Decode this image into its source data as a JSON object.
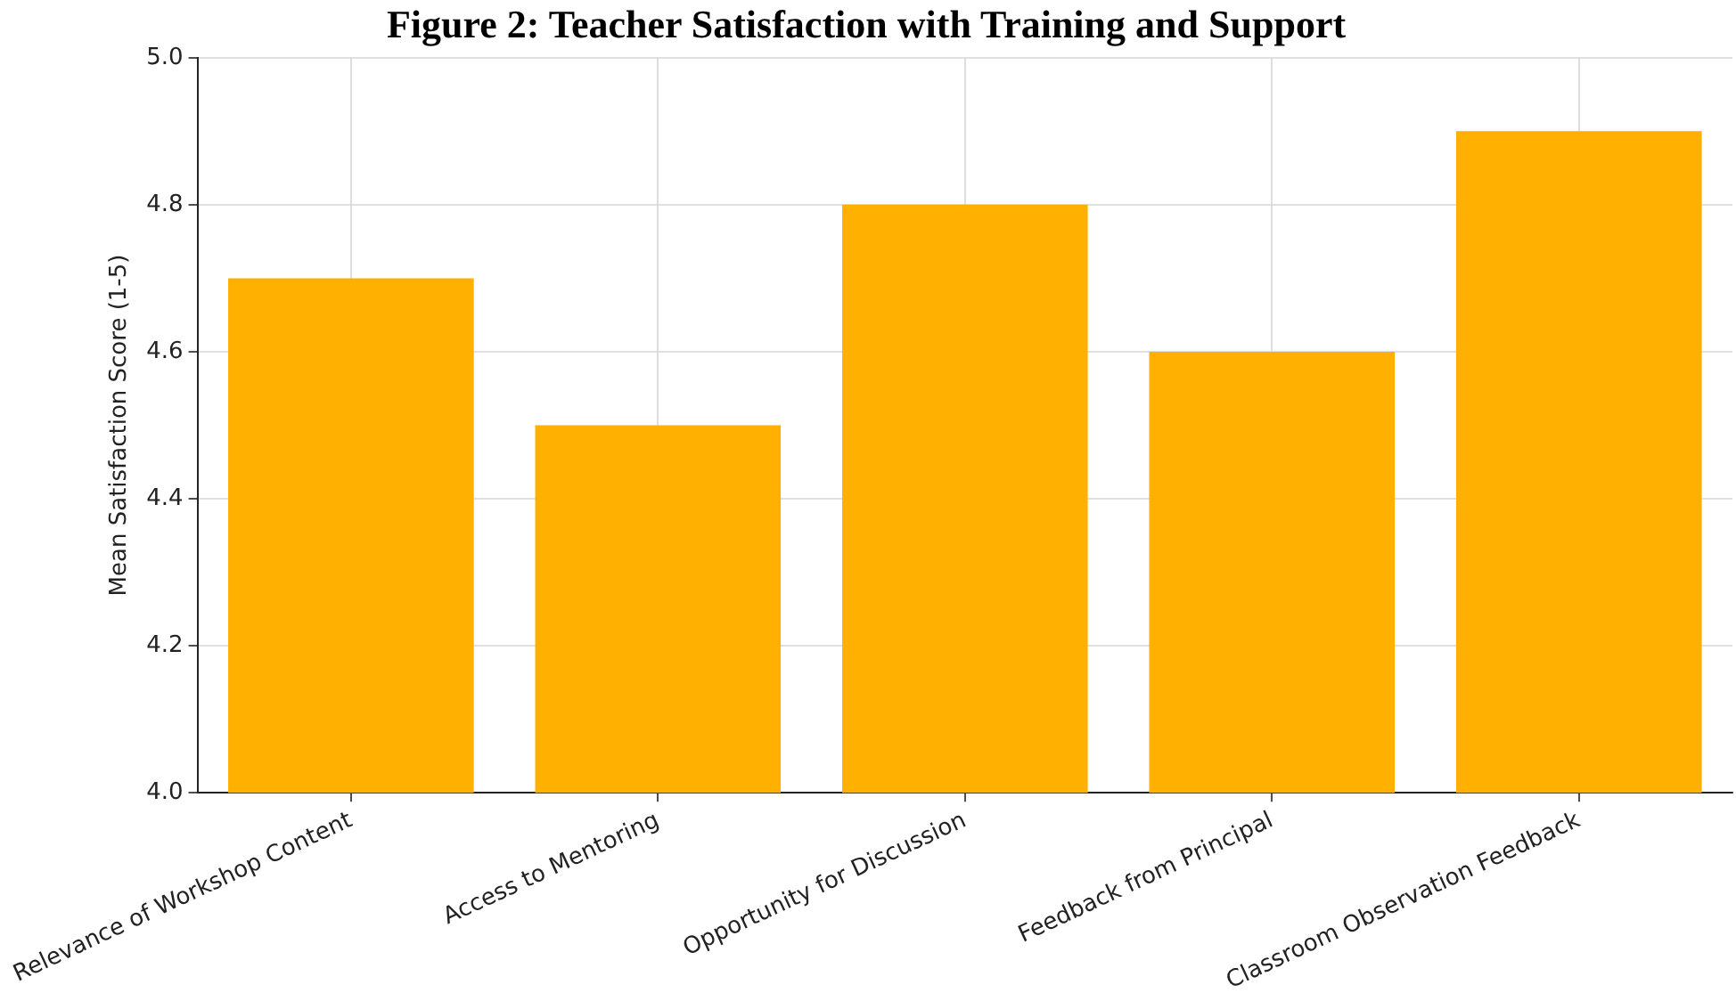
{
  "chart_data": {
    "type": "bar",
    "title": "Figure 2: Teacher Satisfaction with Training and Support",
    "ylabel": "Mean Satisfaction Score (1-5)",
    "categories": [
      "Relevance of Workshop Content",
      "Access to Mentoring",
      "Opportunity for Discussion",
      "Feedback from Principal",
      "Classroom Observation Feedback"
    ],
    "values": [
      4.7,
      4.5,
      4.8,
      4.6,
      4.9
    ],
    "color": "#ffb000",
    "ylim": [
      4.0,
      5.0
    ],
    "yticks": [
      {
        "value": 4.0,
        "label": "4.0"
      },
      {
        "value": 4.2,
        "label": "4.2"
      },
      {
        "value": 4.4,
        "label": "4.4"
      },
      {
        "value": 4.6,
        "label": "4.6"
      },
      {
        "value": 4.8,
        "label": "4.8"
      },
      {
        "value": 5.0,
        "label": "5.0"
      }
    ],
    "grid": true
  }
}
